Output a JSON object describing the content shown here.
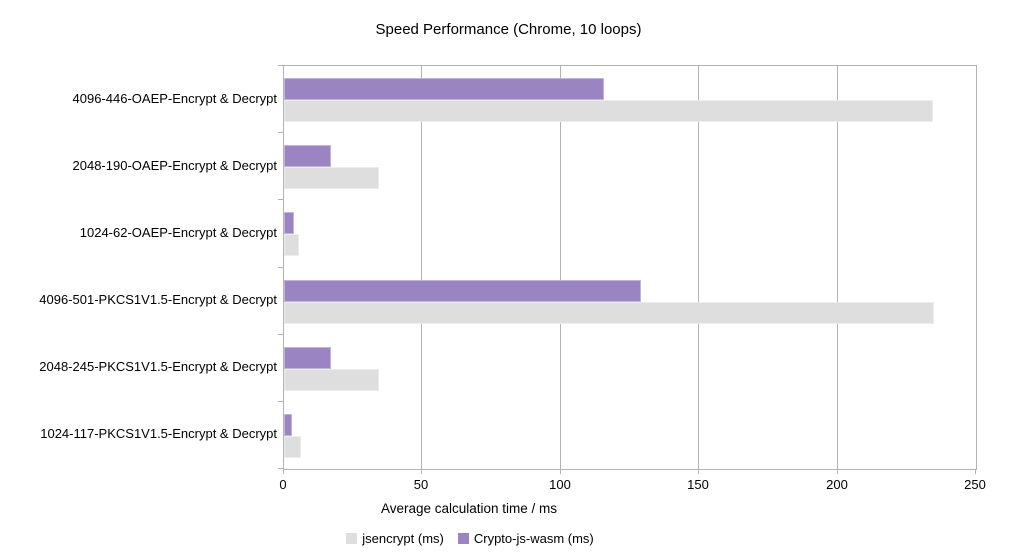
{
  "title": "Speed Performance (Chrome, 10 loops)",
  "chart_data": {
    "type": "bar",
    "orientation": "horizontal",
    "title": "Speed Performance (Chrome, 10 loops)",
    "xlabel": "Average calculation time / ms",
    "ylabel": "",
    "xlim": [
      0,
      250
    ],
    "xticks": [
      0,
      50,
      100,
      150,
      200,
      250
    ],
    "grid": true,
    "legend_position": "bottom",
    "categories": [
      "4096-446-OAEP-Encrypt & Decrypt",
      "2048-190-OAEP-Encrypt & Decrypt",
      "1024-62-OAEP-Encrypt & Decrypt",
      "4096-501-PKCS1V1.5-Encrypt & Decrypt",
      "2048-245-PKCS1V1.5-Encrypt & Decrypt",
      "1024-117-PKCS1V1.5-Encrypt & Decrypt"
    ],
    "series": [
      {
        "name": "jsencrypt (ms)",
        "color": "#dedede",
        "values": [
          234.5,
          34.5,
          5.4,
          235,
          34.5,
          6
        ]
      },
      {
        "name": "Crypto-js-wasm (ms)",
        "color": "#9a85c2",
        "values": [
          115.5,
          17,
          3.6,
          129,
          17,
          3
        ]
      }
    ]
  }
}
